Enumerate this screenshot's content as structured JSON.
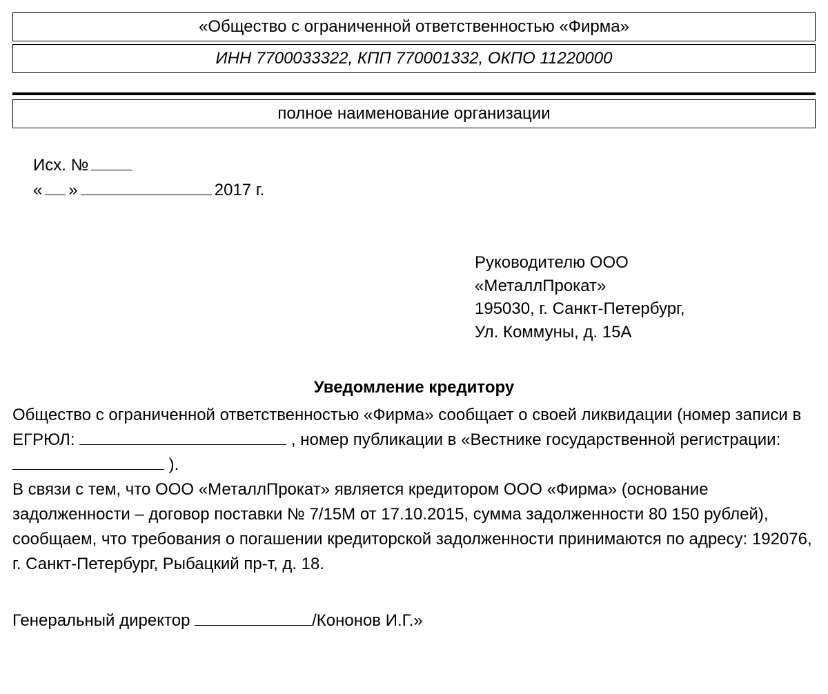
{
  "header": {
    "company_name": "«Общество с ограниченной ответственностью «Фирма»",
    "company_details": "ИНН 7700033322, КПП 770001332, ОКПО 11220000",
    "org_full_name_label": "полное наименование организации"
  },
  "ref": {
    "out_label": "Исх. №",
    "date_year": "2017 г."
  },
  "recipient": {
    "line1": "Руководителю ООО",
    "line2": "«МеталлПрокат»",
    "line3": "195030, г. Санкт-Петербург,",
    "line4": "Ул. Коммуны, д. 15А"
  },
  "title": "Уведомление кредитору",
  "body": {
    "p1_a": "Общество с ограниченной ответственностью «Фирма» сообщает о своей ликвидации (номер записи в ЕГРЮЛ: ",
    "p1_b": " , номер публикации в «Вестнике государственной регистрации: ",
    "p1_c": " ).",
    "p2": "В связи с тем, что ООО «МеталлПрокат» является кредитором ООО «Фирма» (основание задолженности – договор поставки № 7/15М от 17.10.2015, сумма задолженности 80 150 рублей), сообщаем, что требования о погашении кредиторской задолженности принимаются по адресу: 192076, г. Санкт-Петербург, Рыбацкий пр-т, д. 18."
  },
  "signature": {
    "position": "Генеральный директор ",
    "name": "/Кононов И.Г.»"
  },
  "styling": {
    "font_family": "Arial",
    "text_color": "#000000",
    "background_color": "#ffffff",
    "body_fontsize": 24,
    "border_color": "#000000",
    "divider_thickness": 4
  }
}
